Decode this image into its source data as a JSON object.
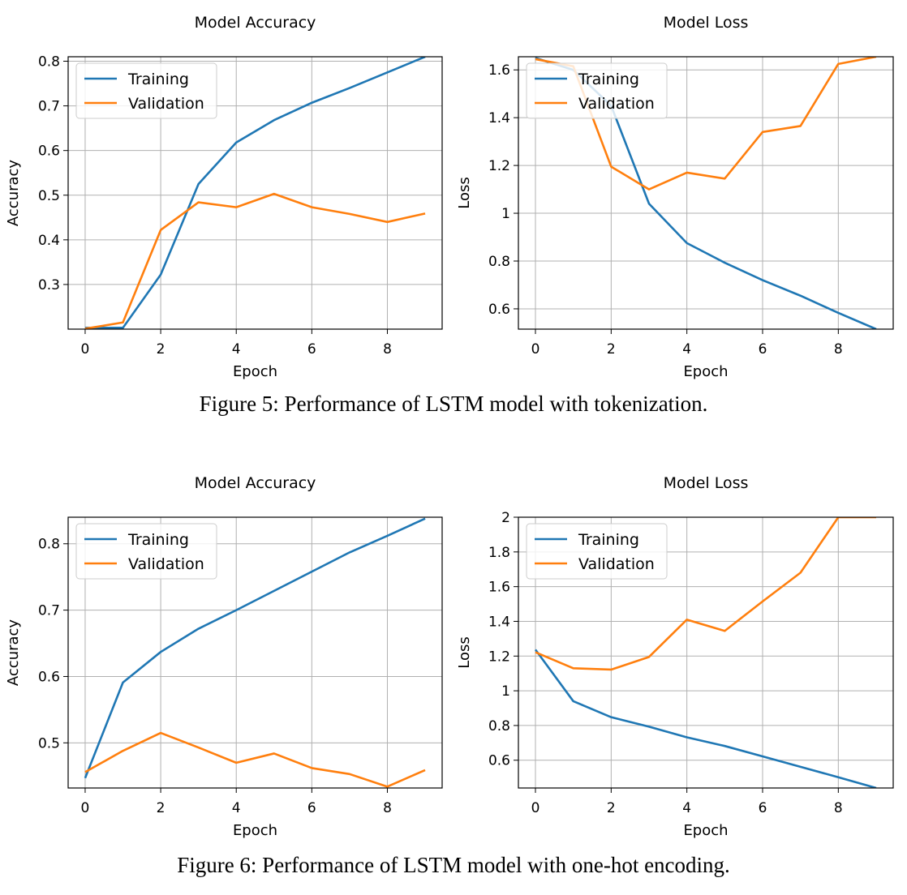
{
  "figures": [
    {
      "caption": "Figure 5: Performance of LSTM model with tokenization."
    },
    {
      "caption": "Figure 6: Performance of LSTM model with one-hot encoding."
    }
  ],
  "chart_data": [
    {
      "type": "line",
      "title": "Model Accuracy",
      "xlabel": "Epoch",
      "ylabel": "Accuracy",
      "xlim": [
        -0.45,
        9.45
      ],
      "ylim": [
        0.2,
        0.81
      ],
      "xticks": [
        0,
        2,
        4,
        6,
        8
      ],
      "yticks": [
        0.3,
        0.4,
        0.5,
        0.6,
        0.7,
        0.8
      ],
      "x": [
        0,
        1,
        2,
        3,
        4,
        5,
        6,
        7,
        8,
        9
      ],
      "series": [
        {
          "name": "Training",
          "color": "#1f77b4",
          "values": [
            0.203,
            0.203,
            0.322,
            0.525,
            0.618,
            0.668,
            0.707,
            0.74,
            0.775,
            0.81
          ]
        },
        {
          "name": "Validation",
          "color": "#ff7f0e",
          "values": [
            0.201,
            0.215,
            0.422,
            0.484,
            0.473,
            0.503,
            0.473,
            0.458,
            0.44,
            0.459
          ]
        }
      ],
      "grid": true,
      "legend": "upper-left"
    },
    {
      "type": "line",
      "title": "Model Loss",
      "xlabel": "Epoch",
      "ylabel": "Loss",
      "xlim": [
        -0.45,
        9.45
      ],
      "ylim": [
        0.515,
        1.655
      ],
      "xticks": [
        0,
        2,
        4,
        6,
        8
      ],
      "yticks": [
        0.6,
        0.8,
        1.0,
        1.2,
        1.4,
        1.6
      ],
      "x": [
        0,
        1,
        2,
        3,
        4,
        5,
        6,
        7,
        8,
        9
      ],
      "series": [
        {
          "name": "Training",
          "color": "#1f77b4",
          "values": [
            1.65,
            1.6,
            1.45,
            1.04,
            0.875,
            0.793,
            0.72,
            0.655,
            0.583,
            0.515
          ]
        },
        {
          "name": "Validation",
          "color": "#ff7f0e",
          "values": [
            1.645,
            1.615,
            1.195,
            1.1,
            1.17,
            1.145,
            1.34,
            1.365,
            1.625,
            1.655
          ]
        }
      ],
      "grid": true,
      "legend": "upper-left"
    },
    {
      "type": "line",
      "title": "Model Accuracy",
      "xlabel": "Epoch",
      "ylabel": "Accuracy",
      "xlim": [
        -0.45,
        9.45
      ],
      "ylim": [
        0.432,
        0.84
      ],
      "xticks": [
        0,
        2,
        4,
        6,
        8
      ],
      "yticks": [
        0.5,
        0.6,
        0.7,
        0.8
      ],
      "x": [
        0,
        1,
        2,
        3,
        4,
        5,
        6,
        7,
        8,
        9
      ],
      "series": [
        {
          "name": "Training",
          "color": "#1f77b4",
          "values": [
            0.447,
            0.591,
            0.637,
            0.672,
            0.7,
            0.729,
            0.758,
            0.787,
            0.812,
            0.838
          ]
        },
        {
          "name": "Validation",
          "color": "#ff7f0e",
          "values": [
            0.456,
            0.488,
            0.515,
            0.493,
            0.47,
            0.484,
            0.462,
            0.453,
            0.434,
            0.459
          ]
        }
      ],
      "grid": true,
      "legend": "upper-left"
    },
    {
      "type": "line",
      "title": "Model Loss",
      "xlabel": "Epoch",
      "ylabel": "Loss",
      "xlim": [
        -0.45,
        9.45
      ],
      "ylim": [
        0.44,
        2.0
      ],
      "xticks": [
        0,
        2,
        4,
        6,
        8
      ],
      "yticks": [
        0.6,
        0.8,
        1.0,
        1.2,
        1.4,
        1.6,
        1.8,
        2.0
      ],
      "x": [
        0,
        1,
        2,
        3,
        4,
        5,
        6,
        7,
        8,
        9
      ],
      "series": [
        {
          "name": "Training",
          "color": "#1f77b4",
          "values": [
            1.237,
            0.94,
            0.848,
            0.793,
            0.732,
            0.682,
            0.622,
            0.562,
            0.502,
            0.44
          ]
        },
        {
          "name": "Validation",
          "color": "#ff7f0e",
          "values": [
            1.222,
            1.13,
            1.122,
            1.195,
            1.41,
            1.345,
            1.515,
            1.68,
            2.0,
            2.0
          ]
        }
      ],
      "grid": true,
      "legend": "upper-left"
    }
  ]
}
